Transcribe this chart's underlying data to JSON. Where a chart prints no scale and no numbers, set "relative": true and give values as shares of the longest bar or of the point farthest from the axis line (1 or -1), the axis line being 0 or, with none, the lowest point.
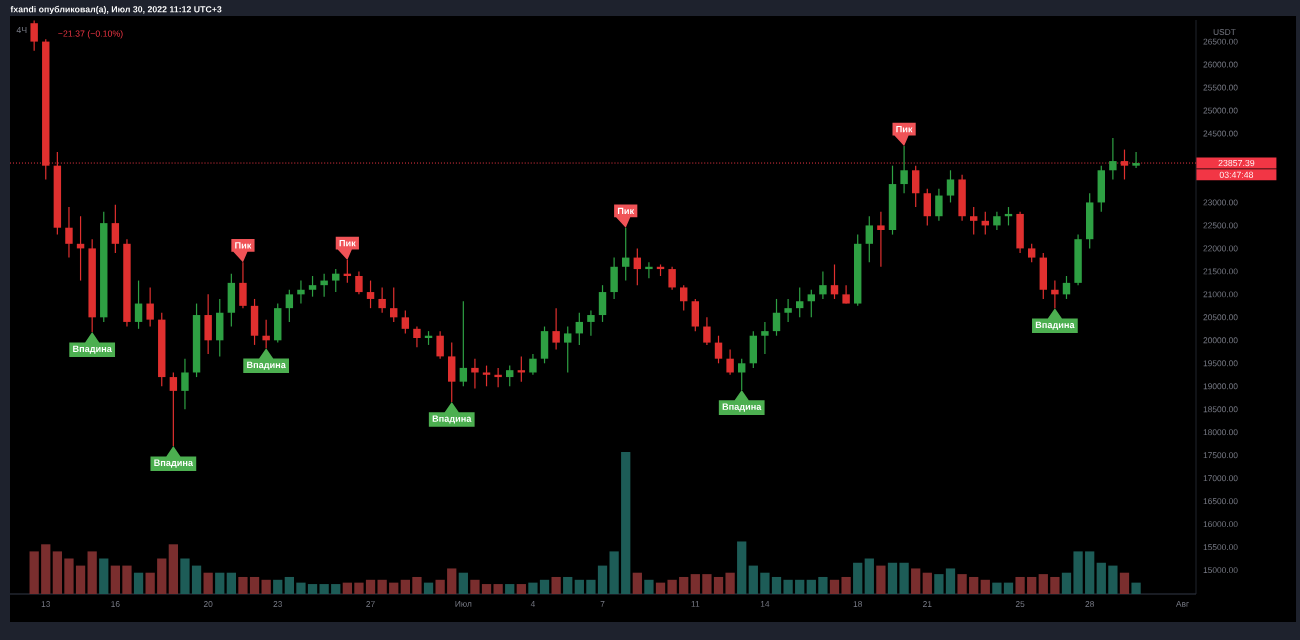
{
  "chart_data": [
    {
      "type": "candlestick",
      "title": "fxandi опубликовал(а), Июл 30, 2022 11:12 UTC+3",
      "subtitle": "4Ч",
      "ylabel": "USDT",
      "x": [
        "2022-06-12T12:00",
        "2022-06-13T00:00",
        "2022-06-13T12:00",
        "2022-06-14T00:00",
        "2022-06-14T12:00",
        "2022-06-15T00:00",
        "2022-06-15T12:00",
        "2022-06-16T00:00",
        "2022-06-16T12:00",
        "2022-06-17T00:00",
        "2022-06-17T12:00",
        "2022-06-18T00:00",
        "2022-06-18T12:00",
        "2022-06-19T00:00",
        "2022-06-19T12:00",
        "2022-06-20T00:00",
        "2022-06-20T12:00",
        "2022-06-21T00:00",
        "2022-06-21T12:00",
        "2022-06-22T00:00",
        "2022-06-22T12:00",
        "2022-06-23T00:00",
        "2022-06-23T12:00",
        "2022-06-24T00:00",
        "2022-06-24T12:00",
        "2022-06-25T00:00",
        "2022-06-25T12:00",
        "2022-06-26T00:00",
        "2022-06-26T12:00",
        "2022-06-27T00:00",
        "2022-06-27T12:00",
        "2022-06-28T00:00",
        "2022-06-28T12:00",
        "2022-06-29T00:00",
        "2022-06-29T12:00",
        "2022-06-30T00:00",
        "2022-06-30T12:00",
        "2022-07-01T00:00",
        "2022-07-01T12:00",
        "2022-07-02T00:00",
        "2022-07-02T12:00",
        "2022-07-03T00:00",
        "2022-07-03T12:00",
        "2022-07-04T00:00",
        "2022-07-04T12:00",
        "2022-07-05T00:00",
        "2022-07-05T12:00",
        "2022-07-06T00:00",
        "2022-07-06T12:00",
        "2022-07-07T00:00",
        "2022-07-07T12:00",
        "2022-07-08T00:00",
        "2022-07-08T12:00",
        "2022-07-09T00:00",
        "2022-07-09T12:00",
        "2022-07-10T00:00",
        "2022-07-10T12:00",
        "2022-07-11T00:00",
        "2022-07-11T12:00",
        "2022-07-12T00:00",
        "2022-07-12T12:00",
        "2022-07-13T00:00",
        "2022-07-13T12:00",
        "2022-07-14T00:00",
        "2022-07-14T12:00",
        "2022-07-15T00:00",
        "2022-07-15T12:00",
        "2022-07-16T00:00",
        "2022-07-16T12:00",
        "2022-07-17T00:00",
        "2022-07-17T12:00",
        "2022-07-18T00:00",
        "2022-07-18T12:00",
        "2022-07-19T00:00",
        "2022-07-19T12:00",
        "2022-07-20T00:00",
        "2022-07-20T12:00",
        "2022-07-21T00:00",
        "2022-07-21T12:00",
        "2022-07-22T00:00",
        "2022-07-22T12:00",
        "2022-07-23T00:00",
        "2022-07-23T12:00",
        "2022-07-24T00:00",
        "2022-07-24T12:00",
        "2022-07-25T00:00",
        "2022-07-25T12:00",
        "2022-07-26T00:00",
        "2022-07-26T12:00",
        "2022-07-27T00:00",
        "2022-07-27T12:00",
        "2022-07-28T00:00",
        "2022-07-28T12:00",
        "2022-07-29T00:00",
        "2022-07-29T12:00",
        "2022-07-30T00:00"
      ],
      "ohlc": [
        [
          26900,
          26960,
          26300,
          26500
        ],
        [
          26500,
          26550,
          23500,
          23800
        ],
        [
          23800,
          24100,
          22300,
          22450
        ],
        [
          22450,
          22900,
          21800,
          22100
        ],
        [
          22100,
          22700,
          21300,
          22000
        ],
        [
          22000,
          22200,
          20180,
          20500
        ],
        [
          20500,
          22800,
          20400,
          22550
        ],
        [
          22550,
          22950,
          21900,
          22100
        ],
        [
          22100,
          22200,
          20300,
          20400
        ],
        [
          20400,
          21300,
          20250,
          20800
        ],
        [
          20800,
          21150,
          20300,
          20450
        ],
        [
          20450,
          20600,
          19000,
          19200
        ],
        [
          19200,
          19300,
          17700,
          18900
        ],
        [
          18900,
          19600,
          18500,
          19300
        ],
        [
          19300,
          20800,
          19200,
          20550
        ],
        [
          20550,
          21000,
          19700,
          20000
        ],
        [
          20000,
          20900,
          19650,
          20600
        ],
        [
          20600,
          21450,
          20300,
          21250
        ],
        [
          21250,
          21700,
          20700,
          20750
        ],
        [
          20750,
          20900,
          19900,
          20100
        ],
        [
          20100,
          20450,
          19830,
          20000
        ],
        [
          20000,
          20800,
          19950,
          20700
        ],
        [
          20700,
          21100,
          20400,
          21000
        ],
        [
          21000,
          21300,
          20800,
          21100
        ],
        [
          21100,
          21400,
          20950,
          21200
        ],
        [
          21200,
          21450,
          20950,
          21300
        ],
        [
          21300,
          21550,
          21050,
          21450
        ],
        [
          21450,
          21750,
          21250,
          21400
        ],
        [
          21400,
          21500,
          21000,
          21050
        ],
        [
          21050,
          21300,
          20700,
          20900
        ],
        [
          20900,
          21150,
          20600,
          20700
        ],
        [
          20700,
          21150,
          20400,
          20500
        ],
        [
          20500,
          20650,
          20150,
          20250
        ],
        [
          20250,
          20300,
          19850,
          20050
        ],
        [
          20050,
          20200,
          19900,
          20100
        ],
        [
          20100,
          20200,
          19600,
          19650
        ],
        [
          19650,
          19950,
          18660,
          19100
        ],
        [
          19100,
          20850,
          19000,
          19400
        ],
        [
          19400,
          19600,
          18950,
          19300
        ],
        [
          19300,
          19450,
          19000,
          19250
        ],
        [
          19250,
          19400,
          18980,
          19200
        ],
        [
          19200,
          19450,
          19000,
          19350
        ],
        [
          19350,
          19650,
          19100,
          19300
        ],
        [
          19300,
          19700,
          19250,
          19600
        ],
        [
          19600,
          20300,
          19500,
          20200
        ],
        [
          20200,
          20700,
          19800,
          19950
        ],
        [
          19950,
          20300,
          19300,
          20150
        ],
        [
          20150,
          20600,
          19900,
          20400
        ],
        [
          20400,
          20650,
          20100,
          20550
        ],
        [
          20550,
          21200,
          20400,
          21050
        ],
        [
          21050,
          21800,
          20900,
          21600
        ],
        [
          21600,
          22450,
          21300,
          21800
        ],
        [
          21800,
          22000,
          21200,
          21550
        ],
        [
          21550,
          21700,
          21350,
          21600
        ],
        [
          21600,
          21650,
          21400,
          21550
        ],
        [
          21550,
          21600,
          21100,
          21150
        ],
        [
          21150,
          21200,
          20650,
          20850
        ],
        [
          20850,
          20900,
          20200,
          20300
        ],
        [
          20300,
          20500,
          19900,
          19950
        ],
        [
          19950,
          20100,
          19500,
          19600
        ],
        [
          19600,
          19800,
          19250,
          19300
        ],
        [
          19300,
          19600,
          18920,
          19500
        ],
        [
          19500,
          20200,
          19400,
          20100
        ],
        [
          20100,
          20400,
          19700,
          20200
        ],
        [
          20200,
          20900,
          20100,
          20600
        ],
        [
          20600,
          20900,
          20400,
          20700
        ],
        [
          20700,
          21150,
          20500,
          20850
        ],
        [
          20850,
          21100,
          20500,
          21000
        ],
        [
          21000,
          21500,
          20900,
          21200
        ],
        [
          21200,
          21650,
          20900,
          21000
        ],
        [
          21000,
          21200,
          20800,
          20800
        ],
        [
          20800,
          22300,
          20750,
          22100
        ],
        [
          22100,
          22700,
          21700,
          22500
        ],
        [
          22500,
          22800,
          21600,
          22400
        ],
        [
          22400,
          23800,
          22300,
          23400
        ],
        [
          23400,
          24230,
          23200,
          23700
        ],
        [
          23700,
          23800,
          22900,
          23200
        ],
        [
          23200,
          23300,
          22500,
          22700
        ],
        [
          22700,
          23300,
          22600,
          23150
        ],
        [
          23150,
          23700,
          23000,
          23500
        ],
        [
          23500,
          23600,
          22600,
          22700
        ],
        [
          22700,
          22900,
          22300,
          22600
        ],
        [
          22600,
          22800,
          22300,
          22500
        ],
        [
          22500,
          22800,
          22400,
          22700
        ],
        [
          22700,
          22900,
          22500,
          22750
        ],
        [
          22750,
          22800,
          21900,
          22000
        ],
        [
          22000,
          22100,
          21700,
          21800
        ],
        [
          21800,
          21900,
          20900,
          21100
        ],
        [
          21100,
          21300,
          20700,
          21000
        ],
        [
          21000,
          21400,
          20900,
          21250
        ],
        [
          21250,
          22300,
          21200,
          22200
        ],
        [
          22200,
          23200,
          22000,
          23000
        ],
        [
          23000,
          23800,
          22800,
          23700
        ],
        [
          23700,
          24400,
          23500,
          23900
        ],
        [
          23900,
          24150,
          23500,
          23800
        ],
        [
          23800,
          24100,
          23750,
          23857.39
        ]
      ],
      "colors": [
        "#e0302f",
        "#e0302f",
        "#e0302f",
        "#e0302f",
        "#e0302f",
        "#e0302f",
        "#2ea043",
        "#e0302f",
        "#e0302f",
        "#2ea043",
        "#e0302f",
        "#e0302f",
        "#e0302f",
        "#2ea043",
        "#2ea043",
        "#e0302f",
        "#2ea043",
        "#2ea043",
        "#e0302f",
        "#e0302f",
        "#e0302f",
        "#2ea043",
        "#2ea043",
        "#2ea043",
        "#2ea043",
        "#2ea043",
        "#2ea043",
        "#e0302f",
        "#e0302f",
        "#e0302f",
        "#e0302f",
        "#e0302f",
        "#e0302f",
        "#e0302f",
        "#2ea043",
        "#e0302f",
        "#e0302f",
        "#2ea043",
        "#e0302f",
        "#e0302f",
        "#e0302f",
        "#2ea043",
        "#e0302f",
        "#2ea043",
        "#2ea043",
        "#e0302f",
        "#2ea043",
        "#2ea043",
        "#2ea043",
        "#2ea043",
        "#2ea043",
        "#2ea043",
        "#e0302f",
        "#2ea043",
        "#e0302f",
        "#e0302f",
        "#e0302f",
        "#e0302f",
        "#e0302f",
        "#e0302f",
        "#e0302f",
        "#2ea043",
        "#2ea043",
        "#2ea043",
        "#2ea043",
        "#2ea043",
        "#2ea043",
        "#2ea043",
        "#2ea043",
        "#e0302f",
        "#e0302f",
        "#2ea043",
        "#2ea043",
        "#e0302f",
        "#2ea043",
        "#2ea043",
        "#e0302f",
        "#e0302f",
        "#2ea043",
        "#2ea043",
        "#e0302f",
        "#e0302f",
        "#e0302f",
        "#2ea043",
        "#2ea043",
        "#e0302f",
        "#e0302f",
        "#e0302f",
        "#e0302f",
        "#2ea043",
        "#2ea043",
        "#2ea043",
        "#2ea043",
        "#2ea043",
        "#e0302f",
        "#2ea043"
      ],
      "xlim": [
        "2022-06-11T11:00",
        "2022-08-01T14:00"
      ],
      "ylim": [
        14480,
        26970
      ],
      "xticks": [
        {
          "value": "2022-06-13",
          "label": "13"
        },
        {
          "value": "2022-06-16",
          "label": "16"
        },
        {
          "value": "2022-06-20",
          "label": "20"
        },
        {
          "value": "2022-06-23",
          "label": "23"
        },
        {
          "value": "2022-06-27",
          "label": "27"
        },
        {
          "value": "2022-07-01",
          "label": "Июл"
        },
        {
          "value": "2022-07-04",
          "label": "4"
        },
        {
          "value": "2022-07-07",
          "label": "7"
        },
        {
          "value": "2022-07-11",
          "label": "11"
        },
        {
          "value": "2022-07-14",
          "label": "14"
        },
        {
          "value": "2022-07-18",
          "label": "18"
        },
        {
          "value": "2022-07-21",
          "label": "21"
        },
        {
          "value": "2022-07-25",
          "label": "25"
        },
        {
          "value": "2022-07-28",
          "label": "28"
        },
        {
          "value": "2022-08-01",
          "label": "Авг"
        }
      ],
      "yticks": [
        {
          "value": 15000,
          "label": "15000.00"
        },
        {
          "value": 15500,
          "label": "15500.00"
        },
        {
          "value": 16000,
          "label": "16000.00"
        },
        {
          "value": 16500,
          "label": "16500.00"
        },
        {
          "value": 17000,
          "label": "17000.00"
        },
        {
          "value": 17500,
          "label": "17500.00"
        },
        {
          "value": 18000,
          "label": "18000.00"
        },
        {
          "value": 18500,
          "label": "18500.00"
        },
        {
          "value": 19000,
          "label": "19000.00"
        },
        {
          "value": 19500,
          "label": "19500.00"
        },
        {
          "value": 20000,
          "label": "20000.00"
        },
        {
          "value": 20500,
          "label": "20500.00"
        },
        {
          "value": 21000,
          "label": "21000.00"
        },
        {
          "value": 21500,
          "label": "21500.00"
        },
        {
          "value": 22000,
          "label": "22000.00"
        },
        {
          "value": 22500,
          "label": "22500.00"
        },
        {
          "value": 23000,
          "label": "23000.00"
        },
        {
          "value": 24500,
          "label": "24500.00"
        },
        {
          "value": 25000,
          "label": "25000.00"
        },
        {
          "value": 25500,
          "label": "25500.00"
        },
        {
          "value": 26000,
          "label": "26000.00"
        },
        {
          "value": 26500,
          "label": "26500.00"
        }
      ],
      "ref_lines": [
        {
          "axis": "y",
          "value": 23857.39,
          "label": "23857.39",
          "color": "#f23645",
          "line_style": "dotted"
        }
      ],
      "annotations": [
        "−21.37 (−0.10%)",
        "03:47:48",
        {
          "text": "Впадина",
          "x": "2022-06-15T00:00",
          "y": 20180
        },
        {
          "text": "Впадина",
          "x": "2022-06-18T12:00",
          "y": 17700
        },
        {
          "text": "Пик",
          "x": "2022-06-21T12:00",
          "y": 21700
        },
        {
          "text": "Впадина",
          "x": "2022-06-22T12:00",
          "y": 19830
        },
        {
          "text": "Пик",
          "x": "2022-06-26T00:00",
          "y": 21750
        },
        {
          "text": "Впадина",
          "x": "2022-06-30T12:00",
          "y": 18660
        },
        {
          "text": "Пик",
          "x": "2022-07-08T00:00",
          "y": 22450
        },
        {
          "text": "Впадина",
          "x": "2022-07-13T00:00",
          "y": 18920
        },
        {
          "text": "Пик",
          "x": "2022-07-20T00:00",
          "y": 24230
        },
        {
          "text": "Впадина",
          "x": "2022-07-26T12:00",
          "y": 20700
        }
      ]
    },
    {
      "type": "bar",
      "relative": true,
      "tick_labels": false,
      "x": [
        "2022-06-12T12:00",
        "2022-06-13T00:00",
        "2022-06-13T12:00",
        "2022-06-14T00:00",
        "2022-06-14T12:00",
        "2022-06-15T00:00",
        "2022-06-15T12:00",
        "2022-06-16T00:00",
        "2022-06-16T12:00",
        "2022-06-17T00:00",
        "2022-06-17T12:00",
        "2022-06-18T00:00",
        "2022-06-18T12:00",
        "2022-06-19T00:00",
        "2022-06-19T12:00",
        "2022-06-20T00:00",
        "2022-06-20T12:00",
        "2022-06-21T00:00",
        "2022-06-21T12:00",
        "2022-06-22T00:00",
        "2022-06-22T12:00",
        "2022-06-23T00:00",
        "2022-06-23T12:00",
        "2022-06-24T00:00",
        "2022-06-24T12:00",
        "2022-06-25T00:00",
        "2022-06-25T12:00",
        "2022-06-26T00:00",
        "2022-06-26T12:00",
        "2022-06-27T00:00",
        "2022-06-27T12:00",
        "2022-06-28T00:00",
        "2022-06-28T12:00",
        "2022-06-29T00:00",
        "2022-06-29T12:00",
        "2022-06-30T00:00",
        "2022-06-30T12:00",
        "2022-07-01T00:00",
        "2022-07-01T12:00",
        "2022-07-02T00:00",
        "2022-07-02T12:00",
        "2022-07-03T00:00",
        "2022-07-03T12:00",
        "2022-07-04T00:00",
        "2022-07-04T12:00",
        "2022-07-05T00:00",
        "2022-07-05T12:00",
        "2022-07-06T00:00",
        "2022-07-06T12:00",
        "2022-07-07T00:00",
        "2022-07-07T12:00",
        "2022-07-08T00:00",
        "2022-07-08T12:00",
        "2022-07-09T00:00",
        "2022-07-09T12:00",
        "2022-07-10T00:00",
        "2022-07-10T12:00",
        "2022-07-11T00:00",
        "2022-07-11T12:00",
        "2022-07-12T00:00",
        "2022-07-12T12:00",
        "2022-07-13T00:00",
        "2022-07-13T12:00",
        "2022-07-14T00:00",
        "2022-07-14T12:00",
        "2022-07-15T00:00",
        "2022-07-15T12:00",
        "2022-07-16T00:00",
        "2022-07-16T12:00",
        "2022-07-17T00:00",
        "2022-07-17T12:00",
        "2022-07-18T00:00",
        "2022-07-18T12:00",
        "2022-07-19T00:00",
        "2022-07-19T12:00",
        "2022-07-20T00:00",
        "2022-07-20T12:00",
        "2022-07-21T00:00",
        "2022-07-21T12:00",
        "2022-07-22T00:00",
        "2022-07-22T12:00",
        "2022-07-23T00:00",
        "2022-07-23T12:00",
        "2022-07-24T00:00",
        "2022-07-24T12:00",
        "2022-07-25T00:00",
        "2022-07-25T12:00",
        "2022-07-26T00:00",
        "2022-07-26T12:00",
        "2022-07-27T00:00",
        "2022-07-27T12:00",
        "2022-07-28T00:00",
        "2022-07-28T12:00",
        "2022-07-29T00:00",
        "2022-07-29T12:00",
        "2022-07-30T00:00"
      ],
      "xlim": [
        "2022-06-11T11:00",
        "2022-08-01T14:00"
      ],
      "values": [
        0.3,
        0.35,
        0.3,
        0.25,
        0.2,
        0.3,
        0.25,
        0.2,
        0.2,
        0.15,
        0.15,
        0.25,
        0.35,
        0.25,
        0.2,
        0.15,
        0.15,
        0.15,
        0.12,
        0.12,
        0.1,
        0.1,
        0.12,
        0.08,
        0.07,
        0.07,
        0.07,
        0.08,
        0.08,
        0.1,
        0.1,
        0.08,
        0.1,
        0.12,
        0.08,
        0.1,
        0.18,
        0.15,
        0.1,
        0.07,
        0.07,
        0.07,
        0.07,
        0.08,
        0.1,
        0.12,
        0.12,
        0.1,
        0.1,
        0.2,
        0.3,
        1.0,
        0.15,
        0.1,
        0.08,
        0.1,
        0.12,
        0.14,
        0.14,
        0.12,
        0.15,
        0.37,
        0.2,
        0.15,
        0.12,
        0.1,
        0.1,
        0.1,
        0.12,
        0.1,
        0.12,
        0.22,
        0.25,
        0.2,
        0.22,
        0.22,
        0.18,
        0.15,
        0.14,
        0.18,
        0.14,
        0.12,
        0.1,
        0.08,
        0.08,
        0.12,
        0.12,
        0.14,
        0.12,
        0.15,
        0.3,
        0.3,
        0.22,
        0.2,
        0.15,
        0.08
      ],
      "colors": [
        "#7a2e2e",
        "#7a2e2e",
        "#7a2e2e",
        "#7a2e2e",
        "#7a2e2e",
        "#7a2e2e",
        "#1d5c57",
        "#7a2e2e",
        "#7a2e2e",
        "#1d5c57",
        "#7a2e2e",
        "#7a2e2e",
        "#7a2e2e",
        "#1d5c57",
        "#1d5c57",
        "#7a2e2e",
        "#1d5c57",
        "#1d5c57",
        "#7a2e2e",
        "#7a2e2e",
        "#7a2e2e",
        "#1d5c57",
        "#1d5c57",
        "#1d5c57",
        "#1d5c57",
        "#1d5c57",
        "#1d5c57",
        "#7a2e2e",
        "#7a2e2e",
        "#7a2e2e",
        "#7a2e2e",
        "#7a2e2e",
        "#7a2e2e",
        "#7a2e2e",
        "#1d5c57",
        "#7a2e2e",
        "#7a2e2e",
        "#1d5c57",
        "#7a2e2e",
        "#7a2e2e",
        "#7a2e2e",
        "#1d5c57",
        "#7a2e2e",
        "#1d5c57",
        "#1d5c57",
        "#7a2e2e",
        "#1d5c57",
        "#1d5c57",
        "#1d5c57",
        "#1d5c57",
        "#1d5c57",
        "#1d5c57",
        "#7a2e2e",
        "#1d5c57",
        "#7a2e2e",
        "#7a2e2e",
        "#7a2e2e",
        "#7a2e2e",
        "#7a2e2e",
        "#7a2e2e",
        "#7a2e2e",
        "#1d5c57",
        "#1d5c57",
        "#1d5c57",
        "#1d5c57",
        "#1d5c57",
        "#1d5c57",
        "#1d5c57",
        "#1d5c57",
        "#7a2e2e",
        "#7a2e2e",
        "#1d5c57",
        "#1d5c57",
        "#7a2e2e",
        "#1d5c57",
        "#1d5c57",
        "#7a2e2e",
        "#7a2e2e",
        "#1d5c57",
        "#1d5c57",
        "#7a2e2e",
        "#7a2e2e",
        "#7a2e2e",
        "#1d5c57",
        "#1d5c57",
        "#7a2e2e",
        "#7a2e2e",
        "#7a2e2e",
        "#7a2e2e",
        "#1d5c57",
        "#1d5c57",
        "#1d5c57",
        "#1d5c57",
        "#1d5c57",
        "#7a2e2e",
        "#1d5c57"
      ]
    }
  ]
}
